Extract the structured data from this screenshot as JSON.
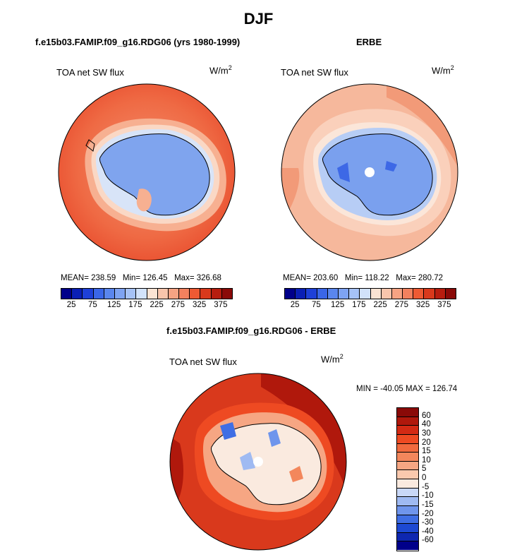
{
  "title": "DJF",
  "panels": {
    "model": {
      "header": "f.e15b03.FAMIP.f09_g16.RDG06 (yrs 1980-1999)",
      "variable": "TOA net SW flux",
      "units": "W/m",
      "units_sup": "2",
      "stats": "MEAN= 238.59   Min= 126.45   Max= 326.68"
    },
    "obs": {
      "header": "ERBE",
      "variable": "TOA net SW flux",
      "units": "W/m",
      "units_sup": "2",
      "stats": "MEAN= 203.60   Min= 118.22   Max= 280.72"
    },
    "diff": {
      "header": "f.e15b03.FAMIP.f09_g16.RDG06 - ERBE",
      "variable": "TOA net SW flux",
      "units": "W/m",
      "units_sup": "2",
      "stats": "MIN = -40.05 MAX = 126.74"
    }
  },
  "colorbar_main": {
    "ticks": [
      "25",
      "75",
      "125",
      "175",
      "225",
      "275",
      "325",
      "375"
    ],
    "colors": [
      "#00008a",
      "#0a1fb5",
      "#1e40d8",
      "#3a66e8",
      "#5a86ee",
      "#7ea3f2",
      "#a6c2f6",
      "#d2e2fa",
      "#fbe3d3",
      "#f9c5ac",
      "#f6a383",
      "#f2815e",
      "#ee5a33",
      "#d9391c",
      "#b71d0f",
      "#8a0a08"
    ]
  },
  "colorbar_diff": {
    "labels": [
      "60",
      "40",
      "30",
      "20",
      "15",
      "10",
      "5",
      "0",
      "-5",
      "-10",
      "-15",
      "-20",
      "-30",
      "-40",
      "-60"
    ],
    "colors": [
      "#8a0a08",
      "#b0180c",
      "#d32a14",
      "#ee4a22",
      "#f16a3e",
      "#f3875c",
      "#f6a683",
      "#fac9ae",
      "#faeadf",
      "#c9d8f7",
      "#9fbaf2",
      "#6f95ec",
      "#3f6ee4",
      "#1d49d3",
      "#0e27b0",
      "#00008a"
    ]
  }
}
